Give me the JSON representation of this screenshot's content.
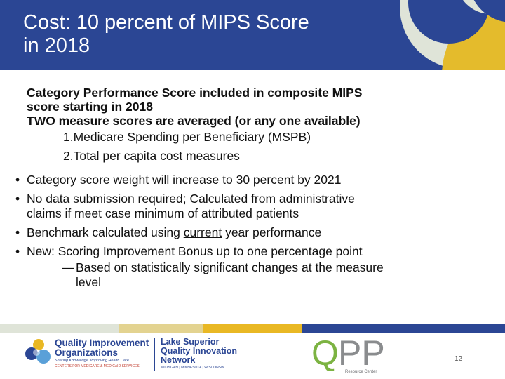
{
  "slide": {
    "title_line1": "Cost: 10 percent of MIPS Score",
    "title_line2": "in 2018",
    "intro_line1": "Category Performance Score included in composite MIPS",
    "intro_line2": "score starting in 2018",
    "intro_line3": "TWO measure scores are averaged (or any one available)",
    "measures": [
      "1.Medicare Spending per Beneficiary (MSPB)",
      "2.Total per capita cost measures"
    ],
    "bullets": {
      "b1": "Category score weight will increase to 30 percent by 2021",
      "b2_line1": "No data submission required; Calculated from administrative",
      "b2_line2": "claims if meet case minimum of attributed patients",
      "b3_pre": "Benchmark calculated using ",
      "b3_u": "current",
      "b3_post": " year performance",
      "b4": "New: Scoring Improvement Bonus up to one percentage point",
      "sub_line1": "Based on statistically significant changes at the measure",
      "sub_line2": "level"
    },
    "page_number": "12"
  },
  "footer": {
    "qio_line1": "Quality Improvement",
    "qio_line2": "Organizations",
    "qio_tag": "Sharing Knowledge. Improving Health Care.",
    "qio_tag2": "CENTERS FOR MEDICARE & MEDICAID SERVICES",
    "ls_line1": "Lake Superior",
    "ls_line2": "Quality Innovation",
    "ls_line3": "Network",
    "ls_tag": "MICHIGAN | MINNESOTA | WISCONSIN",
    "qpp_q": "Q",
    "qpp_pp": "PP",
    "qpp_tag": "Resource Center"
  },
  "colors": {
    "header": "#2b4694",
    "qpp_green": "#7cb342",
    "qpp_grey": "#8a8c8e",
    "footer_yellow": "#e9b824",
    "footer_blue": "#2b4694"
  }
}
